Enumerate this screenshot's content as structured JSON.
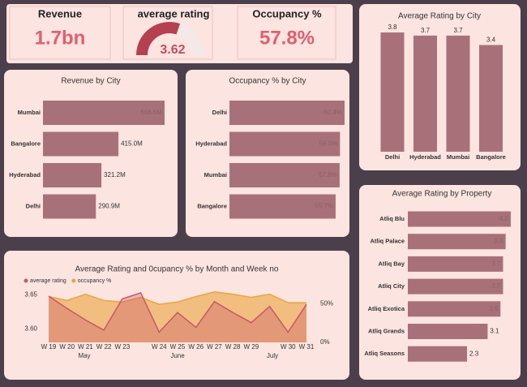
{
  "kpis": [
    {
      "title": "Revenue",
      "value": "1.7bn"
    },
    {
      "title": "average rating",
      "value": 3.62,
      "lim": [
        0,
        6
      ],
      "color": "#b5404f"
    },
    {
      "title": "Occupancy %",
      "value": "57.8%"
    }
  ],
  "chart_data": [
    {
      "type": "bar",
      "orientation": "horizontal",
      "title": "Revenue by City",
      "color": "#a8717a",
      "categories": [
        "Mumbai",
        "Bangalore",
        "Hyderabad",
        "Delhi"
      ],
      "values": [
        668.6,
        415.0,
        321.2,
        290.9
      ],
      "value_labels": [
        "668.6M",
        "415.0M",
        "321.2M",
        "290.9M"
      ]
    },
    {
      "type": "bar",
      "orientation": "horizontal",
      "title": "Occupancy % by City",
      "color": "#a8717a",
      "categories": [
        "Delhi",
        "Hyderabad",
        "Mumbai",
        "Bangalore"
      ],
      "values": [
        60.4,
        58.0,
        57.8,
        55.7
      ],
      "value_labels": [
        "60.4%",
        "58.0%",
        "57.8%",
        "55.7%"
      ]
    },
    {
      "type": "bar",
      "orientation": "vertical",
      "title": "Average Rating by City",
      "color": "#a8717a",
      "categories": [
        "Delhi",
        "Hyderabad",
        "Mumbai",
        "Bangalore"
      ],
      "values": [
        3.8,
        3.7,
        3.7,
        3.4
      ]
    },
    {
      "type": "bar",
      "orientation": "horizontal",
      "title": "Average Rating by Property",
      "color": "#a8717a",
      "categories": [
        "Atliq Blu",
        "Atliq Palace",
        "Atliq Bay",
        "Atliq City",
        "Atliq Exotica",
        "Atliq Grands",
        "Atliq Seasons"
      ],
      "values": [
        4.0,
        3.8,
        3.7,
        3.7,
        3.6,
        3.1,
        2.3
      ],
      "value_labels": [
        "4.0",
        "3.8",
        "3.7",
        "3.7",
        "3.6",
        "3.1",
        "2.3"
      ]
    },
    {
      "type": "area",
      "title": "Average Rating and 0cupancy % by Month and Week no",
      "categories": [
        "W 19",
        "W 20",
        "W 21",
        "W 22",
        "W 23",
        null,
        "W 24",
        "W 25",
        "W 26",
        "W 27",
        "W 28",
        "W 29",
        null,
        "W 30",
        "W 31"
      ],
      "months": [
        "May",
        "June",
        "July"
      ],
      "series": [
        {
          "name": "average rating",
          "color": "#c9566a",
          "values": [
            3.648,
            3.63,
            3.613,
            3.598,
            3.644,
            3.653,
            3.595,
            3.624,
            3.602,
            3.64,
            3.624,
            3.609,
            3.633,
            3.595,
            3.636
          ]
        },
        {
          "name": "occupancy %",
          "color": "#e9a53f",
          "axis": "y2",
          "values": [
            59,
            54,
            62,
            54,
            52,
            58,
            49,
            52,
            59,
            65,
            62,
            58,
            62,
            51,
            51
          ]
        }
      ],
      "ylim": [
        3.58,
        3.66
      ],
      "yticks": [
        {
          "value": 3.6,
          "label": "3.60"
        },
        {
          "value": 3.65,
          "label": "3.65"
        }
      ],
      "y2lim": [
        0,
        70
      ],
      "y2ticks": [
        {
          "value": 0,
          "label": "0%"
        },
        {
          "value": 50,
          "label": "50%"
        }
      ]
    }
  ]
}
